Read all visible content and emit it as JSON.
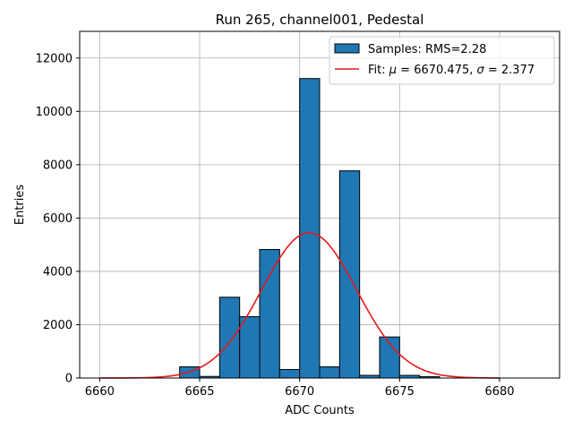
{
  "chart_data": {
    "type": "bar",
    "title": "Run 265, channel001, Pedestal",
    "xlabel": "ADC Counts",
    "ylabel": "Entries",
    "xlim": [
      6659,
      6683
    ],
    "ylim": [
      0,
      13000
    ],
    "xticks": [
      6660,
      6665,
      6670,
      6675,
      6680
    ],
    "yticks": [
      0,
      2000,
      4000,
      6000,
      8000,
      10000,
      12000
    ],
    "grid": true,
    "legend_position": "top-right",
    "bar_color": "#1f77b4",
    "bar_edge_color": "#000000",
    "fit_color": "#e31a1c",
    "histogram": {
      "name": "Samples: RMS=2.28",
      "bin_width": 1,
      "bins": [
        {
          "left": 6664,
          "count": 420
        },
        {
          "left": 6665,
          "count": 60
        },
        {
          "left": 6666,
          "count": 3030
        },
        {
          "left": 6667,
          "count": 2300
        },
        {
          "left": 6668,
          "count": 4820
        },
        {
          "left": 6669,
          "count": 320
        },
        {
          "left": 6670,
          "count": 11230
        },
        {
          "left": 6671,
          "count": 420
        },
        {
          "left": 6672,
          "count": 7770
        },
        {
          "left": 6673,
          "count": 100
        },
        {
          "left": 6674,
          "count": 1540
        },
        {
          "left": 6675,
          "count": 100
        },
        {
          "left": 6676,
          "count": 50
        }
      ]
    },
    "fit": {
      "name_prefix": "Fit: ",
      "mu_symbol": "μ",
      "sigma_symbol": "σ",
      "mu": 6670.475,
      "sigma": 2.377,
      "amplitude": 5450,
      "x_range": [
        6660,
        6680
      ]
    }
  }
}
